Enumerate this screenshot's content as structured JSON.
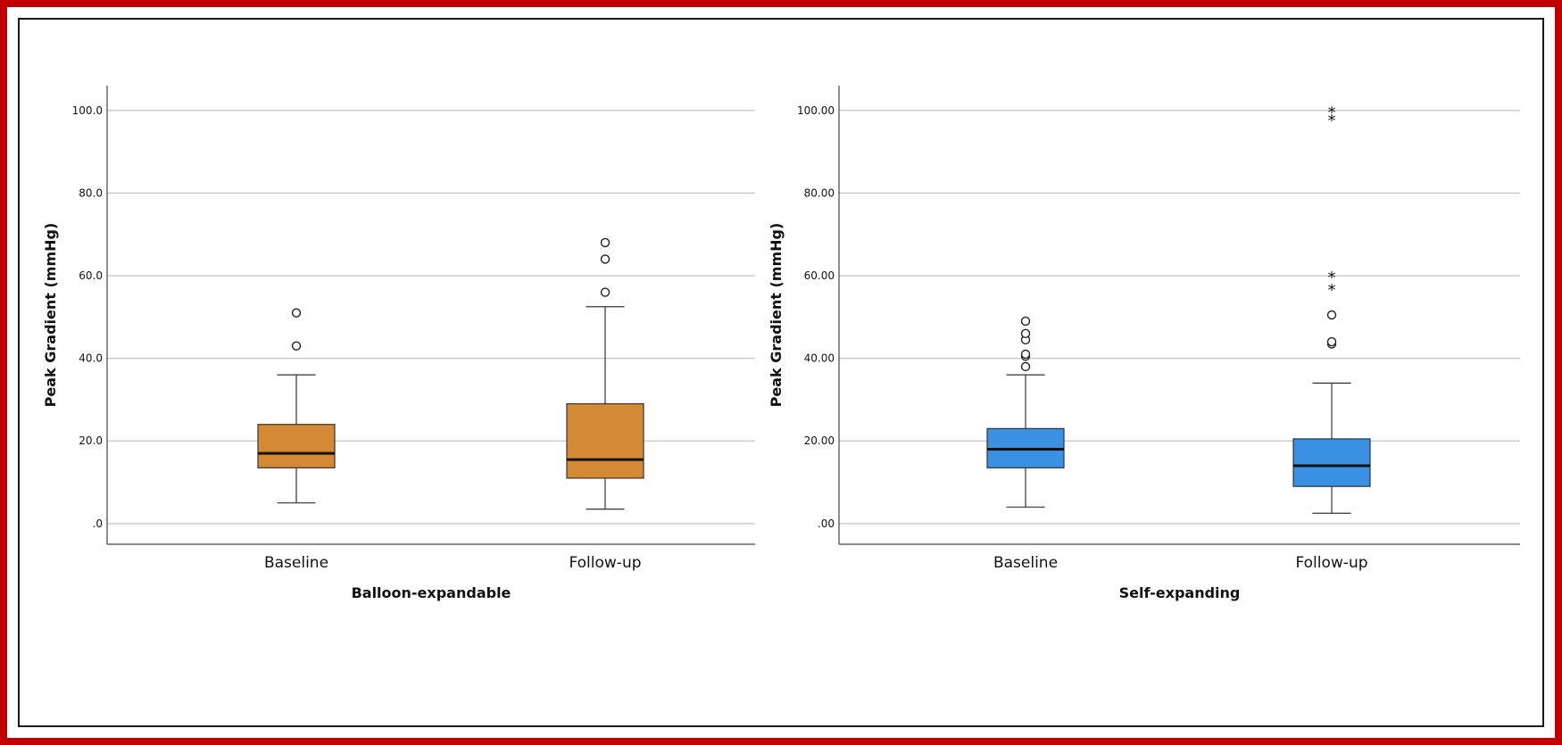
{
  "colors": {
    "frame": "#c00000",
    "balloon_box": "#d48a35",
    "self_box": "#3a90e3"
  },
  "chart_data": [
    {
      "type": "box",
      "id": "balloon",
      "xlabel": "Balloon-expandable",
      "ylabel": "Peak Gradient (mmHg)",
      "ylim": [
        -5,
        106
      ],
      "yticks": [
        0,
        20,
        40,
        60,
        80,
        100
      ],
      "ytick_labels": [
        ".0",
        "20.0",
        "40.0",
        "60.0",
        "80.0",
        "100.0"
      ],
      "grid": true,
      "color": "#d48a35",
      "categories": [
        "Baseline",
        "Follow-up"
      ],
      "boxes": [
        {
          "category": "Baseline",
          "whisker_low": 5,
          "q1": 13.5,
          "median": 17,
          "q3": 24,
          "whisker_high": 36,
          "outliers": [
            43,
            51
          ],
          "extremes": []
        },
        {
          "category": "Follow-up",
          "whisker_low": 3.5,
          "q1": 11,
          "median": 15.5,
          "q3": 29,
          "whisker_high": 52.5,
          "outliers": [
            56,
            64,
            68
          ],
          "extremes": []
        }
      ]
    },
    {
      "type": "box",
      "id": "self",
      "xlabel": "Self-expanding",
      "ylabel": "Peak Gradient (mmHg)",
      "ylim": [
        -5,
        106
      ],
      "yticks": [
        0,
        20,
        40,
        60,
        80,
        100
      ],
      "ytick_labels": [
        ".00",
        "20.00",
        "40.00",
        "60.00",
        "80.00",
        "100.00"
      ],
      "grid": true,
      "color": "#3a90e3",
      "categories": [
        "Baseline",
        "Follow-up"
      ],
      "boxes": [
        {
          "category": "Baseline",
          "whisker_low": 4,
          "q1": 13.5,
          "median": 18,
          "q3": 23,
          "whisker_high": 36,
          "outliers": [
            38,
            40.5,
            41,
            44.5,
            46,
            49
          ],
          "extremes": []
        },
        {
          "category": "Follow-up",
          "whisker_low": 2.5,
          "q1": 9,
          "median": 14,
          "q3": 20.5,
          "whisker_high": 34,
          "outliers": [
            43.5,
            44,
            50.5
          ],
          "extremes": [
            57,
            60,
            98,
            100
          ]
        }
      ]
    }
  ]
}
